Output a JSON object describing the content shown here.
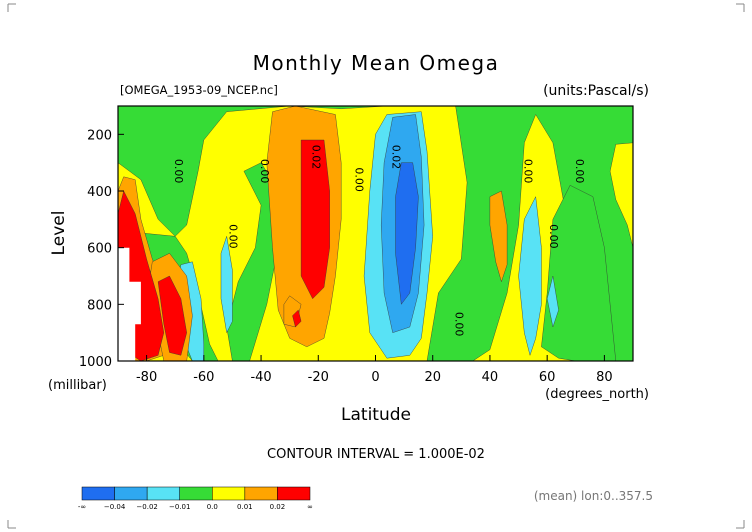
{
  "chart_data": {
    "type": "heatmap",
    "title": "Monthly Mean Omega",
    "file_label": "[OMEGA_1953-09_NCEP.nc]",
    "units_label": "(units:Pascal/s)",
    "xlabel": "Latitude",
    "x_unit_label": "(degrees_north)",
    "ylabel": "Level",
    "y_unit_label": "(millibar)",
    "xlim": [
      -90,
      90
    ],
    "ylim": [
      1000,
      100
    ],
    "x_ticks": [
      -80,
      -60,
      -40,
      -20,
      0,
      20,
      40,
      60,
      80
    ],
    "x_tick_labels": [
      "-80",
      "-60",
      "-40",
      "-20",
      "0",
      "20",
      "40",
      "60",
      "80"
    ],
    "y_ticks": [
      200,
      400,
      600,
      800,
      1000
    ],
    "y_tick_labels": [
      "200",
      "400",
      "600",
      "800",
      "1000"
    ],
    "footer": "CONTOUR INTERVAL = 1.000E-02",
    "subtitle_right": "(mean) lon:0..357.5",
    "levels": [
      -0.04,
      -0.02,
      -0.01,
      0.0,
      0.01,
      0.02
    ],
    "colorbar": {
      "colors": [
        "#1f6ef0",
        "#2fa8f0",
        "#58e2f5",
        "#36dc36",
        "#ffff00",
        "#ffa500",
        "#ff0000"
      ],
      "labels": [
        "-∞",
        "−0.04",
        "−0.02",
        "−0.01",
        "0.0",
        "0.01",
        "0.02",
        "∞"
      ]
    },
    "contour_labels": [
      {
        "text": "0.00",
        "x": -70,
        "y": 330
      },
      {
        "text": "0.00",
        "x": -40,
        "y": 330
      },
      {
        "text": "0.00",
        "x": -51,
        "y": 560
      },
      {
        "text": "0.02",
        "x": -22,
        "y": 280
      },
      {
        "text": "0.00",
        "x": -7,
        "y": 360
      },
      {
        "text": "0.02",
        "x": 6,
        "y": 280
      },
      {
        "text": "0.00",
        "x": 28,
        "y": 870
      },
      {
        "text": "0.00",
        "x": 52,
        "y": 330
      },
      {
        "text": "0.00",
        "x": 70,
        "y": 330
      },
      {
        "text": "0.00",
        "x": 61,
        "y": 560
      }
    ],
    "regions": [
      {
        "level": "0.0 to 0.01",
        "color": "#ffff00",
        "poly": [
          [
            -90,
            100
          ],
          [
            90,
            100
          ],
          [
            90,
            1000
          ],
          [
            -90,
            1000
          ]
        ]
      },
      {
        "level": "-0.01 to 0.0",
        "color": "#36dc36",
        "poly": [
          [
            -90,
            100
          ],
          [
            90,
            100
          ],
          [
            90,
            230
          ],
          [
            84,
            235
          ],
          [
            82,
            330
          ],
          [
            84,
            430
          ],
          [
            88,
            520
          ],
          [
            90,
            600
          ],
          [
            90,
            1000
          ],
          [
            70,
            1000
          ],
          [
            70,
            760
          ],
          [
            66,
            450
          ],
          [
            62,
            230
          ],
          [
            56,
            130
          ],
          [
            52,
            230
          ],
          [
            50,
            520
          ],
          [
            46,
            760
          ],
          [
            40,
            960
          ],
          [
            34,
            1000
          ],
          [
            18,
            1000
          ],
          [
            22,
            760
          ],
          [
            30,
            640
          ],
          [
            32,
            370
          ],
          [
            28,
            100
          ],
          [
            4,
            100
          ],
          [
            -12,
            110
          ],
          [
            -30,
            100
          ],
          [
            -52,
            120
          ],
          [
            -60,
            220
          ],
          [
            -62,
            330
          ],
          [
            -66,
            520
          ],
          [
            -70,
            560
          ],
          [
            -76,
            500
          ],
          [
            -82,
            360
          ],
          [
            -90,
            300
          ]
        ]
      },
      {
        "level": "-0.01 to 0.0",
        "color": "#36dc36",
        "poly": [
          [
            -70,
            560
          ],
          [
            -66,
            620
          ],
          [
            -62,
            760
          ],
          [
            -58,
            940
          ],
          [
            -55,
            1000
          ],
          [
            -64,
            1000
          ],
          [
            -72,
            900
          ],
          [
            -78,
            820
          ],
          [
            -84,
            700
          ],
          [
            -90,
            620
          ],
          [
            -90,
            540
          ]
        ]
      },
      {
        "level": "-0.01 to 0.0",
        "color": "#36dc36",
        "poly": [
          [
            -46,
            330
          ],
          [
            -40,
            450
          ],
          [
            -42,
            600
          ],
          [
            -48,
            720
          ],
          [
            -52,
            880
          ],
          [
            -50,
            1000
          ],
          [
            -44,
            1000
          ],
          [
            -38,
            800
          ],
          [
            -34,
            600
          ],
          [
            -34,
            400
          ],
          [
            -40,
            300
          ]
        ]
      },
      {
        "level": "-0.01 to 0.0",
        "color": "#36dc36",
        "poly": [
          [
            58,
            950
          ],
          [
            60,
            760
          ],
          [
            62,
            500
          ],
          [
            68,
            380
          ],
          [
            76,
            420
          ],
          [
            80,
            600
          ],
          [
            82,
            800
          ],
          [
            84,
            1000
          ],
          [
            70,
            1000
          ],
          [
            64,
            990
          ]
        ]
      },
      {
        "level": "-0.02 to -0.01",
        "color": "#58e2f5",
        "poly": [
          [
            4,
            130
          ],
          [
            16,
            120
          ],
          [
            18,
            260
          ],
          [
            20,
            560
          ],
          [
            18,
            760
          ],
          [
            16,
            920
          ],
          [
            12,
            980
          ],
          [
            4,
            990
          ],
          [
            -2,
            900
          ],
          [
            -4,
            700
          ],
          [
            -2,
            400
          ],
          [
            0,
            200
          ]
        ]
      },
      {
        "level": "-0.02 to -0.01",
        "color": "#58e2f5",
        "poly": [
          [
            52,
            500
          ],
          [
            56,
            420
          ],
          [
            58,
            600
          ],
          [
            58,
            800
          ],
          [
            56,
            920
          ],
          [
            54,
            980
          ],
          [
            52,
            900
          ],
          [
            50,
            700
          ]
        ]
      },
      {
        "level": "-0.02 to -0.01",
        "color": "#58e2f5",
        "poly": [
          [
            -64,
            650
          ],
          [
            -61,
            780
          ],
          [
            -60,
            940
          ],
          [
            -60,
            1000
          ],
          [
            -64,
            1000
          ],
          [
            -68,
            900
          ],
          [
            -70,
            780
          ],
          [
            -68,
            660
          ]
        ]
      },
      {
        "level": "-0.02 to -0.01",
        "color": "#58e2f5",
        "poly": [
          [
            -52,
            560
          ],
          [
            -50,
            680
          ],
          [
            -50,
            860
          ],
          [
            -52,
            900
          ],
          [
            -54,
            780
          ],
          [
            -54,
            620
          ]
        ]
      },
      {
        "level": "-0.02 to -0.01",
        "color": "#58e2f5",
        "poly": [
          [
            60,
            780
          ],
          [
            62,
            700
          ],
          [
            64,
            820
          ],
          [
            62,
            880
          ]
        ]
      },
      {
        "level": "-0.04 to -0.02",
        "color": "#2fa8f0",
        "poly": [
          [
            6,
            140
          ],
          [
            14,
            130
          ],
          [
            16,
            280
          ],
          [
            17,
            520
          ],
          [
            15,
            760
          ],
          [
            12,
            880
          ],
          [
            6,
            900
          ],
          [
            3,
            760
          ],
          [
            2,
            520
          ],
          [
            3,
            300
          ]
        ]
      },
      {
        "level": "< -0.04",
        "color": "#1f6ef0",
        "poly": [
          [
            9,
            300
          ],
          [
            13,
            300
          ],
          [
            15,
            420
          ],
          [
            14,
            600
          ],
          [
            12,
            760
          ],
          [
            9,
            800
          ],
          [
            7,
            620
          ],
          [
            7,
            420
          ]
        ]
      },
      {
        "level": "0.01 to 0.02",
        "color": "#ffa500",
        "poly": [
          [
            -36,
            120
          ],
          [
            -28,
            100
          ],
          [
            -14,
            130
          ],
          [
            -12,
            300
          ],
          [
            -12,
            500
          ],
          [
            -14,
            700
          ],
          [
            -16,
            830
          ],
          [
            -18,
            920
          ],
          [
            -24,
            950
          ],
          [
            -30,
            920
          ],
          [
            -34,
            820
          ],
          [
            -36,
            600
          ],
          [
            -38,
            300
          ]
        ]
      },
      {
        "level": "0.01 to 0.02",
        "color": "#ffa500",
        "poly": [
          [
            40,
            420
          ],
          [
            44,
            400
          ],
          [
            46,
            520
          ],
          [
            46,
            660
          ],
          [
            44,
            720
          ],
          [
            42,
            650
          ],
          [
            40,
            520
          ]
        ]
      },
      {
        "level": "0.01 to 0.02",
        "color": "#ffa500",
        "poly": [
          [
            -88,
            350
          ],
          [
            -84,
            360
          ],
          [
            -82,
            500
          ],
          [
            -78,
            640
          ],
          [
            -74,
            740
          ],
          [
            -72,
            860
          ],
          [
            -74,
            980
          ],
          [
            -80,
            1000
          ],
          [
            -88,
            1000
          ],
          [
            -90,
            950
          ],
          [
            -90,
            400
          ]
        ]
      },
      {
        "level": "0.01 to 0.02",
        "color": "#ffa500",
        "poly": [
          [
            -78,
            650
          ],
          [
            -72,
            620
          ],
          [
            -66,
            700
          ],
          [
            -64,
            840
          ],
          [
            -66,
            1000
          ],
          [
            -74,
            1000
          ],
          [
            -76,
            900
          ],
          [
            -80,
            780
          ]
        ]
      },
      {
        "level": "0.01 to 0.02",
        "color": "#ffa500",
        "poly": [
          [
            -32,
            800
          ],
          [
            -30,
            770
          ],
          [
            -26,
            800
          ],
          [
            -28,
            880
          ],
          [
            -32,
            870
          ]
        ]
      },
      {
        "level": "> 0.02",
        "color": "#ff0000",
        "poly": [
          [
            -26,
            220
          ],
          [
            -18,
            220
          ],
          [
            -16,
            400
          ],
          [
            -16,
            600
          ],
          [
            -18,
            740
          ],
          [
            -22,
            780
          ],
          [
            -26,
            700
          ],
          [
            -26,
            450
          ]
        ]
      },
      {
        "level": "> 0.02",
        "color": "#ff0000",
        "poly": [
          [
            -90,
            480
          ],
          [
            -88,
            400
          ],
          [
            -84,
            480
          ],
          [
            -80,
            640
          ],
          [
            -76,
            780
          ],
          [
            -74,
            900
          ],
          [
            -76,
            980
          ],
          [
            -82,
            1000
          ],
          [
            -88,
            960
          ],
          [
            -90,
            900
          ]
        ]
      },
      {
        "level": "> 0.02",
        "color": "#ff0000",
        "poly": [
          [
            -76,
            720
          ],
          [
            -72,
            700
          ],
          [
            -68,
            780
          ],
          [
            -66,
            900
          ],
          [
            -68,
            980
          ],
          [
            -72,
            970
          ],
          [
            -74,
            870
          ]
        ]
      },
      {
        "level": "> 0.02",
        "color": "#ff0000",
        "poly": [
          [
            -29,
            840
          ],
          [
            -27,
            820
          ],
          [
            -26,
            860
          ],
          [
            -28,
            880
          ]
        ]
      },
      {
        "level": "missing",
        "color": "#ffffff",
        "poly": [
          [
            -90,
            600
          ],
          [
            -86,
            600
          ],
          [
            -86,
            720
          ],
          [
            -82,
            720
          ],
          [
            -82,
            870
          ],
          [
            -84,
            870
          ],
          [
            -84,
            1000
          ],
          [
            -90,
            1000
          ]
        ]
      }
    ]
  }
}
